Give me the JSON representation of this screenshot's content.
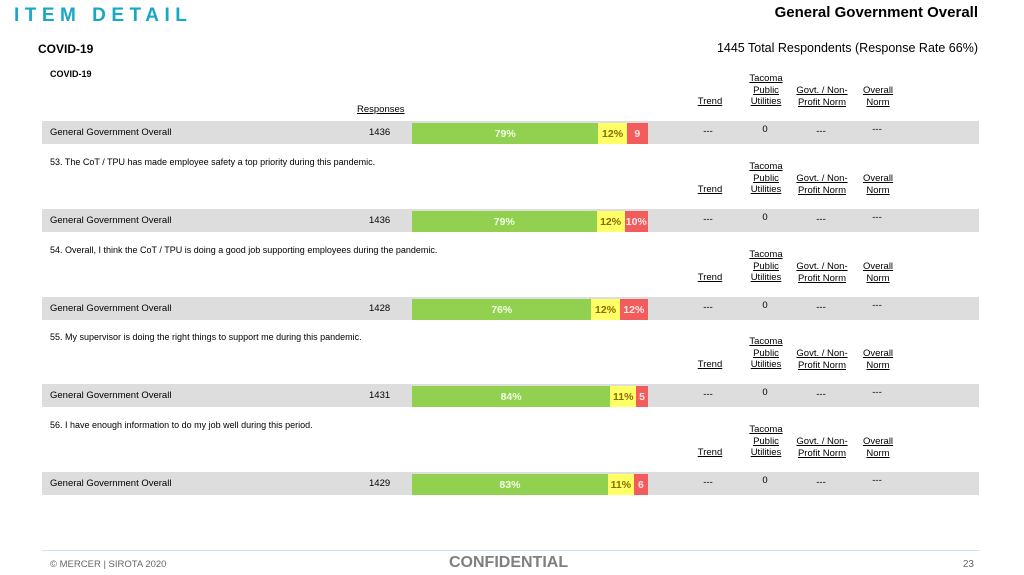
{
  "header": {
    "title": "ITEM DETAIL",
    "report": "General Government Overall",
    "subtitle": "COVID-19",
    "respondents": "1445 Total Respondents (Response Rate  66%)"
  },
  "columns": {
    "responses": "Responses",
    "trend": "Trend",
    "tpu_l1": "Tacoma",
    "tpu_l2": "Public",
    "tpu_l3": "Utilities",
    "govt_l1": "Govt. / Non-",
    "govt_l2": "Profit Norm",
    "overall_l1": "Overall",
    "overall_l2": "Norm"
  },
  "sections": [
    {
      "heading": "COVID-19",
      "row_label": "General Government Overall",
      "count": "1436",
      "fav": 79,
      "neu": 12,
      "unf": 9,
      "fav_label": "79%",
      "neu_label": "12%",
      "unf_label": "9",
      "trend": "---",
      "tpu": "0",
      "govt": "---",
      "overall": "---"
    },
    {
      "heading": "53. The CoT / TPU has made employee safety a top priority during this pandemic.",
      "row_label": "General Government Overall",
      "count": "1436",
      "fav": 79,
      "neu": 12,
      "unf": 10,
      "fav_label": "79%",
      "neu_label": "12%",
      "unf_label": "10%",
      "trend": "---",
      "tpu": "0",
      "govt": "---",
      "overall": "---"
    },
    {
      "heading": "54. Overall, I think the CoT / TPU is doing a good job supporting employees during the pandemic.",
      "row_label": "General Government Overall",
      "count": "1428",
      "fav": 76,
      "neu": 12,
      "unf": 12,
      "fav_label": "76%",
      "neu_label": "12%",
      "unf_label": "12%",
      "trend": "---",
      "tpu": "0",
      "govt": "---",
      "overall": "---"
    },
    {
      "heading": "55. My supervisor is doing the right things to support me during this pandemic.",
      "row_label": "General Government Overall",
      "count": "1431",
      "fav": 84,
      "neu": 11,
      "unf": 5,
      "fav_label": "84%",
      "neu_label": "11%",
      "unf_label": "5",
      "trend": "---",
      "tpu": "0",
      "govt": "---",
      "overall": "---"
    },
    {
      "heading": "56. I have enough information to do my job well during this period.",
      "row_label": "General Government Overall",
      "count": "1429",
      "fav": 83,
      "neu": 11,
      "unf": 6,
      "fav_label": "83%",
      "neu_label": "11%",
      "unf_label": "6",
      "trend": "---",
      "tpu": "0",
      "govt": "---",
      "overall": "---"
    }
  ],
  "colors": {
    "favorable": "#92d050",
    "neutral": "#ffff66",
    "unfavorable": "#f25c5c",
    "accent": "#1aa6c6"
  },
  "footer": {
    "copyright": "© MERCER | SIROTA 2020",
    "confidential": "CONFIDENTIAL",
    "page": "23"
  }
}
